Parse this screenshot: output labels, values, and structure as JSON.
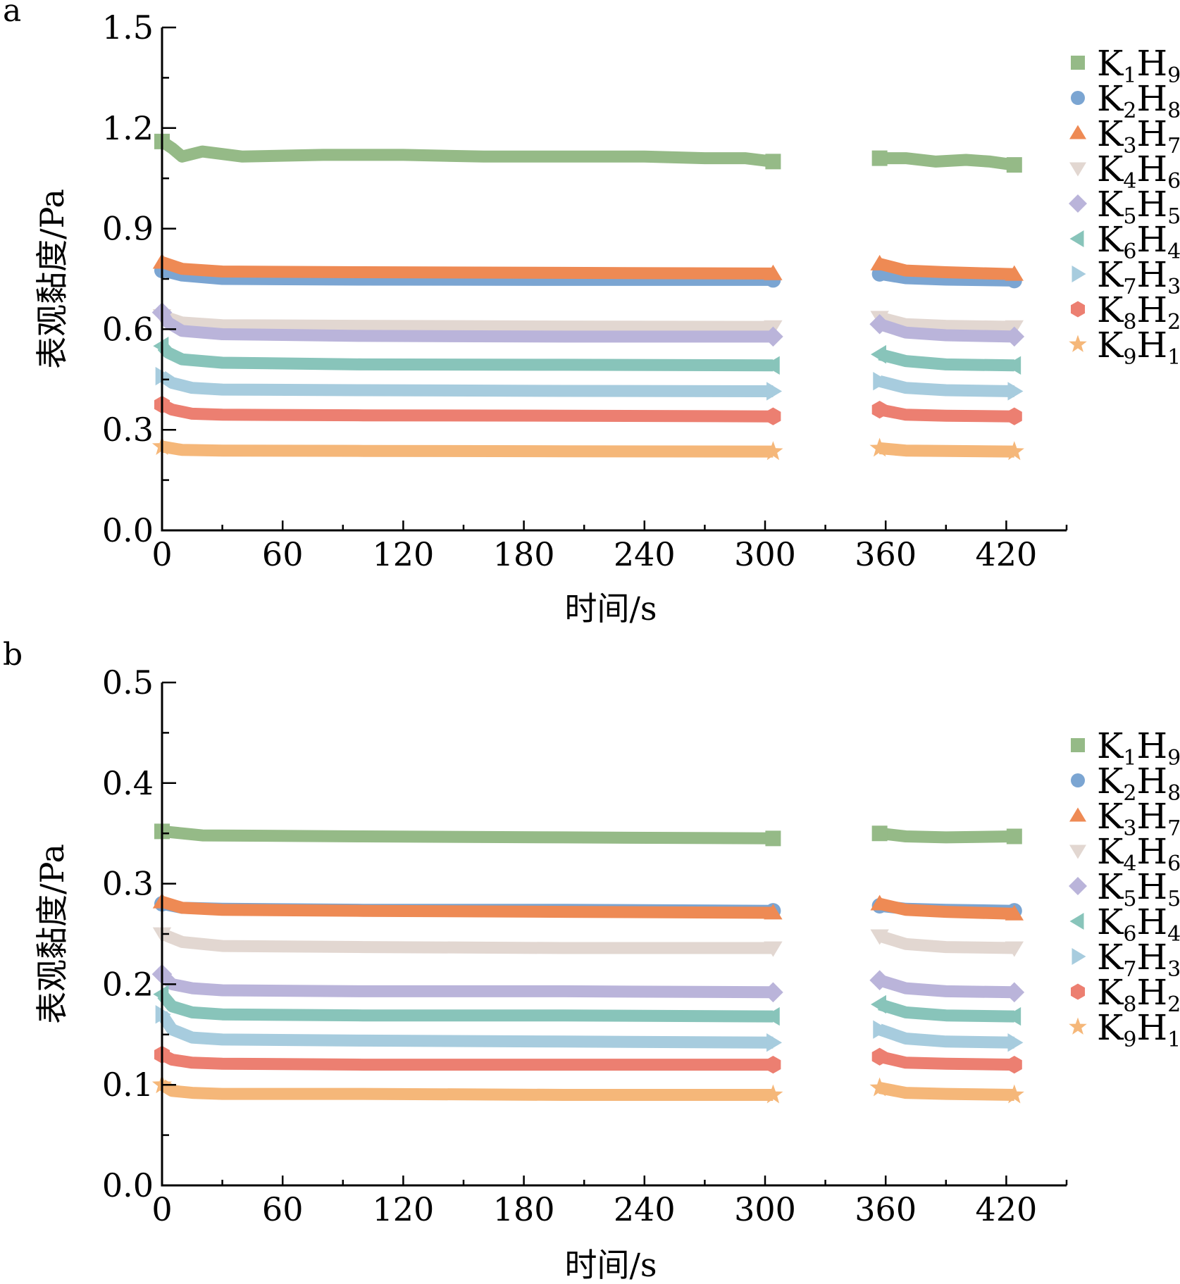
{
  "chart_data": [
    {
      "panel_label": "a",
      "type": "scatter",
      "xlabel": "时间/s",
      "ylabel": "表观黏度/Pa",
      "xlim": [
        0,
        450
      ],
      "ylim": [
        0,
        1.5
      ],
      "xticks": [
        0,
        60,
        120,
        180,
        240,
        300,
        360,
        420
      ],
      "xtick_labels": [
        "0",
        "60",
        "120",
        "180",
        "240",
        "300",
        "360",
        "420"
      ],
      "x_minor_step": 30,
      "yticks": [
        0.0,
        0.3,
        0.6,
        0.9,
        1.2,
        1.5
      ],
      "ytick_labels": [
        "0.0",
        "0.3",
        "0.6",
        "0.9",
        "1.2",
        "1.5"
      ],
      "y_minor_step": 0.15,
      "grid": false,
      "legend_position": "right",
      "segments": [
        [
          0,
          304
        ],
        [
          357,
          424
        ]
      ],
      "series": [
        {
          "name": "K1H9",
          "k": "1",
          "h": "9",
          "marker": "square",
          "color": "#95BA87",
          "seg1": [
            [
              0,
              1.16
            ],
            [
              5,
              1.14
            ],
            [
              10,
              1.115
            ],
            [
              20,
              1.13
            ],
            [
              40,
              1.115
            ],
            [
              80,
              1.12
            ],
            [
              120,
              1.12
            ],
            [
              160,
              1.115
            ],
            [
              200,
              1.115
            ],
            [
              240,
              1.115
            ],
            [
              270,
              1.11
            ],
            [
              290,
              1.11
            ],
            [
              304,
              1.1
            ]
          ],
          "seg2": [
            [
              357,
              1.11
            ],
            [
              370,
              1.11
            ],
            [
              385,
              1.1
            ],
            [
              400,
              1.105
            ],
            [
              412,
              1.1
            ],
            [
              424,
              1.09
            ]
          ]
        },
        {
          "name": "K2H8",
          "k": "2",
          "h": "8",
          "marker": "circle",
          "color": "#7BA5D2",
          "seg1": [
            [
              0,
              0.775
            ],
            [
              10,
              0.76
            ],
            [
              30,
              0.75
            ],
            [
              100,
              0.748
            ],
            [
              200,
              0.747
            ],
            [
              304,
              0.747
            ]
          ],
          "seg2": [
            [
              357,
              0.765
            ],
            [
              370,
              0.752
            ],
            [
              390,
              0.748
            ],
            [
              424,
              0.745
            ]
          ]
        },
        {
          "name": "K3H7",
          "k": "3",
          "h": "7",
          "marker": "triangle-up",
          "color": "#EE8A54",
          "seg1": [
            [
              0,
              0.8
            ],
            [
              10,
              0.78
            ],
            [
              30,
              0.772
            ],
            [
              100,
              0.77
            ],
            [
              200,
              0.768
            ],
            [
              304,
              0.766
            ]
          ],
          "seg2": [
            [
              357,
              0.795
            ],
            [
              370,
              0.775
            ],
            [
              390,
              0.77
            ],
            [
              424,
              0.764
            ]
          ]
        },
        {
          "name": "K4H6",
          "k": "4",
          "h": "6",
          "marker": "triangle-down",
          "color": "#E2D7D1",
          "seg1": [
            [
              0,
              0.64
            ],
            [
              10,
              0.62
            ],
            [
              30,
              0.612
            ],
            [
              100,
              0.61
            ],
            [
              200,
              0.608
            ],
            [
              304,
              0.607
            ]
          ],
          "seg2": [
            [
              357,
              0.635
            ],
            [
              370,
              0.615
            ],
            [
              390,
              0.61
            ],
            [
              424,
              0.607
            ]
          ]
        },
        {
          "name": "K5H5",
          "k": "5",
          "h": "5",
          "marker": "diamond",
          "color": "#BAB4DA",
          "seg1": [
            [
              0,
              0.65
            ],
            [
              3,
              0.62
            ],
            [
              10,
              0.595
            ],
            [
              30,
              0.585
            ],
            [
              100,
              0.58
            ],
            [
              200,
              0.578
            ],
            [
              304,
              0.578
            ]
          ],
          "seg2": [
            [
              357,
              0.615
            ],
            [
              370,
              0.59
            ],
            [
              390,
              0.582
            ],
            [
              424,
              0.578
            ]
          ]
        },
        {
          "name": "K6H4",
          "k": "6",
          "h": "4",
          "marker": "triangle-left",
          "color": "#88C4BA",
          "seg1": [
            [
              0,
              0.55
            ],
            [
              3,
              0.53
            ],
            [
              10,
              0.51
            ],
            [
              30,
              0.5
            ],
            [
              100,
              0.495
            ],
            [
              200,
              0.494
            ],
            [
              304,
              0.492
            ]
          ],
          "seg2": [
            [
              357,
              0.525
            ],
            [
              370,
              0.505
            ],
            [
              390,
              0.495
            ],
            [
              424,
              0.492
            ]
          ]
        },
        {
          "name": "K7H3",
          "k": "7",
          "h": "3",
          "marker": "triangle-right",
          "color": "#A7CCDE",
          "seg1": [
            [
              0,
              0.46
            ],
            [
              5,
              0.44
            ],
            [
              15,
              0.425
            ],
            [
              30,
              0.42
            ],
            [
              100,
              0.418
            ],
            [
              200,
              0.416
            ],
            [
              304,
              0.415
            ]
          ],
          "seg2": [
            [
              357,
              0.445
            ],
            [
              370,
              0.425
            ],
            [
              390,
              0.418
            ],
            [
              424,
              0.415
            ]
          ]
        },
        {
          "name": "K8H2",
          "k": "8",
          "h": "2",
          "marker": "hexagon",
          "color": "#EC7F71",
          "seg1": [
            [
              0,
              0.375
            ],
            [
              5,
              0.36
            ],
            [
              15,
              0.348
            ],
            [
              30,
              0.345
            ],
            [
              100,
              0.343
            ],
            [
              200,
              0.342
            ],
            [
              304,
              0.34
            ]
          ],
          "seg2": [
            [
              357,
              0.36
            ],
            [
              370,
              0.345
            ],
            [
              390,
              0.342
            ],
            [
              424,
              0.34
            ]
          ]
        },
        {
          "name": "K9H1",
          "k": "9",
          "h": "1",
          "marker": "star",
          "color": "#F5B779",
          "seg1": [
            [
              0,
              0.25
            ],
            [
              10,
              0.24
            ],
            [
              30,
              0.238
            ],
            [
              100,
              0.237
            ],
            [
              200,
              0.236
            ],
            [
              304,
              0.235
            ]
          ],
          "seg2": [
            [
              357,
              0.245
            ],
            [
              370,
              0.238
            ],
            [
              390,
              0.237
            ],
            [
              424,
              0.235
            ]
          ]
        }
      ]
    },
    {
      "panel_label": "b",
      "type": "scatter",
      "xlabel": "时间/s",
      "ylabel": "表观黏度/Pa",
      "xlim": [
        0,
        450
      ],
      "ylim": [
        0,
        0.5
      ],
      "xticks": [
        0,
        60,
        120,
        180,
        240,
        300,
        360,
        420
      ],
      "xtick_labels": [
        "0",
        "60",
        "120",
        "180",
        "240",
        "300",
        "360",
        "420"
      ],
      "x_minor_step": 30,
      "yticks": [
        0.0,
        0.1,
        0.2,
        0.3,
        0.4,
        0.5
      ],
      "ytick_labels": [
        "0.0",
        "0.1",
        "0.2",
        "0.3",
        "0.4",
        "0.5"
      ],
      "y_minor_step": 0.05,
      "grid": false,
      "legend_position": "right",
      "segments": [
        [
          0,
          304
        ],
        [
          357,
          424
        ]
      ],
      "series": [
        {
          "name": "K1H9",
          "k": "1",
          "h": "9",
          "marker": "square",
          "color": "#95BA87",
          "seg1": [
            [
              0,
              0.352
            ],
            [
              10,
              0.35
            ],
            [
              20,
              0.348
            ],
            [
              100,
              0.347
            ],
            [
              200,
              0.346
            ],
            [
              304,
              0.345
            ]
          ],
          "seg2": [
            [
              357,
              0.35
            ],
            [
              370,
              0.347
            ],
            [
              390,
              0.346
            ],
            [
              424,
              0.347
            ]
          ]
        },
        {
          "name": "K2H8",
          "k": "2",
          "h": "8",
          "marker": "circle",
          "color": "#7BA5D2",
          "seg1": [
            [
              0,
              0.28
            ],
            [
              10,
              0.276
            ],
            [
              30,
              0.275
            ],
            [
              100,
              0.274
            ],
            [
              200,
              0.274
            ],
            [
              304,
              0.273
            ]
          ],
          "seg2": [
            [
              357,
              0.278
            ],
            [
              370,
              0.275
            ],
            [
              390,
              0.274
            ],
            [
              424,
              0.273
            ]
          ]
        },
        {
          "name": "K3H7",
          "k": "3",
          "h": "7",
          "marker": "triangle-up",
          "color": "#EE8A54",
          "seg1": [
            [
              0,
              0.282
            ],
            [
              10,
              0.276
            ],
            [
              30,
              0.274
            ],
            [
              100,
              0.273
            ],
            [
              200,
              0.272
            ],
            [
              304,
              0.271
            ]
          ],
          "seg2": [
            [
              357,
              0.28
            ],
            [
              370,
              0.274
            ],
            [
              390,
              0.272
            ],
            [
              424,
              0.27
            ]
          ]
        },
        {
          "name": "K4H6",
          "k": "4",
          "h": "6",
          "marker": "triangle-down",
          "color": "#E2D7D1",
          "seg1": [
            [
              0,
              0.25
            ],
            [
              10,
              0.242
            ],
            [
              30,
              0.238
            ],
            [
              100,
              0.237
            ],
            [
              200,
              0.236
            ],
            [
              304,
              0.236
            ]
          ],
          "seg2": [
            [
              357,
              0.248
            ],
            [
              370,
              0.24
            ],
            [
              390,
              0.237
            ],
            [
              424,
              0.236
            ]
          ]
        },
        {
          "name": "K5H5",
          "k": "5",
          "h": "5",
          "marker": "diamond",
          "color": "#BAB4DA",
          "seg1": [
            [
              0,
              0.21
            ],
            [
              5,
              0.2
            ],
            [
              15,
              0.196
            ],
            [
              30,
              0.194
            ],
            [
              100,
              0.193
            ],
            [
              200,
              0.193
            ],
            [
              304,
              0.192
            ]
          ],
          "seg2": [
            [
              357,
              0.204
            ],
            [
              370,
              0.196
            ],
            [
              390,
              0.193
            ],
            [
              424,
              0.192
            ]
          ]
        },
        {
          "name": "K6H4",
          "k": "6",
          "h": "4",
          "marker": "triangle-left",
          "color": "#88C4BA",
          "seg1": [
            [
              0,
              0.19
            ],
            [
              5,
              0.178
            ],
            [
              15,
              0.172
            ],
            [
              30,
              0.17
            ],
            [
              100,
              0.169
            ],
            [
              200,
              0.169
            ],
            [
              304,
              0.168
            ]
          ],
          "seg2": [
            [
              357,
              0.18
            ],
            [
              370,
              0.172
            ],
            [
              390,
              0.169
            ],
            [
              424,
              0.168
            ]
          ]
        },
        {
          "name": "K7H3",
          "k": "7",
          "h": "3",
          "marker": "triangle-right",
          "color": "#A7CCDE",
          "seg1": [
            [
              0,
              0.17
            ],
            [
              5,
              0.155
            ],
            [
              15,
              0.147
            ],
            [
              30,
              0.145
            ],
            [
              100,
              0.144
            ],
            [
              200,
              0.143
            ],
            [
              304,
              0.142
            ]
          ],
          "seg2": [
            [
              357,
              0.155
            ],
            [
              370,
              0.146
            ],
            [
              390,
              0.143
            ],
            [
              424,
              0.142
            ]
          ]
        },
        {
          "name": "K8H2",
          "k": "8",
          "h": "2",
          "marker": "hexagon",
          "color": "#EC7F71",
          "seg1": [
            [
              0,
              0.13
            ],
            [
              5,
              0.125
            ],
            [
              15,
              0.122
            ],
            [
              30,
              0.121
            ],
            [
              100,
              0.12
            ],
            [
              200,
              0.12
            ],
            [
              304,
              0.12
            ]
          ],
          "seg2": [
            [
              357,
              0.128
            ],
            [
              370,
              0.122
            ],
            [
              390,
              0.121
            ],
            [
              424,
              0.12
            ]
          ]
        },
        {
          "name": "K9H1",
          "k": "9",
          "h": "1",
          "marker": "star",
          "color": "#F5B779",
          "seg1": [
            [
              0,
              0.1
            ],
            [
              5,
              0.094
            ],
            [
              15,
              0.092
            ],
            [
              30,
              0.091
            ],
            [
              100,
              0.091
            ],
            [
              200,
              0.09
            ],
            [
              304,
              0.09
            ]
          ],
          "seg2": [
            [
              357,
              0.097
            ],
            [
              370,
              0.092
            ],
            [
              390,
              0.091
            ],
            [
              424,
              0.09
            ]
          ]
        }
      ]
    }
  ]
}
